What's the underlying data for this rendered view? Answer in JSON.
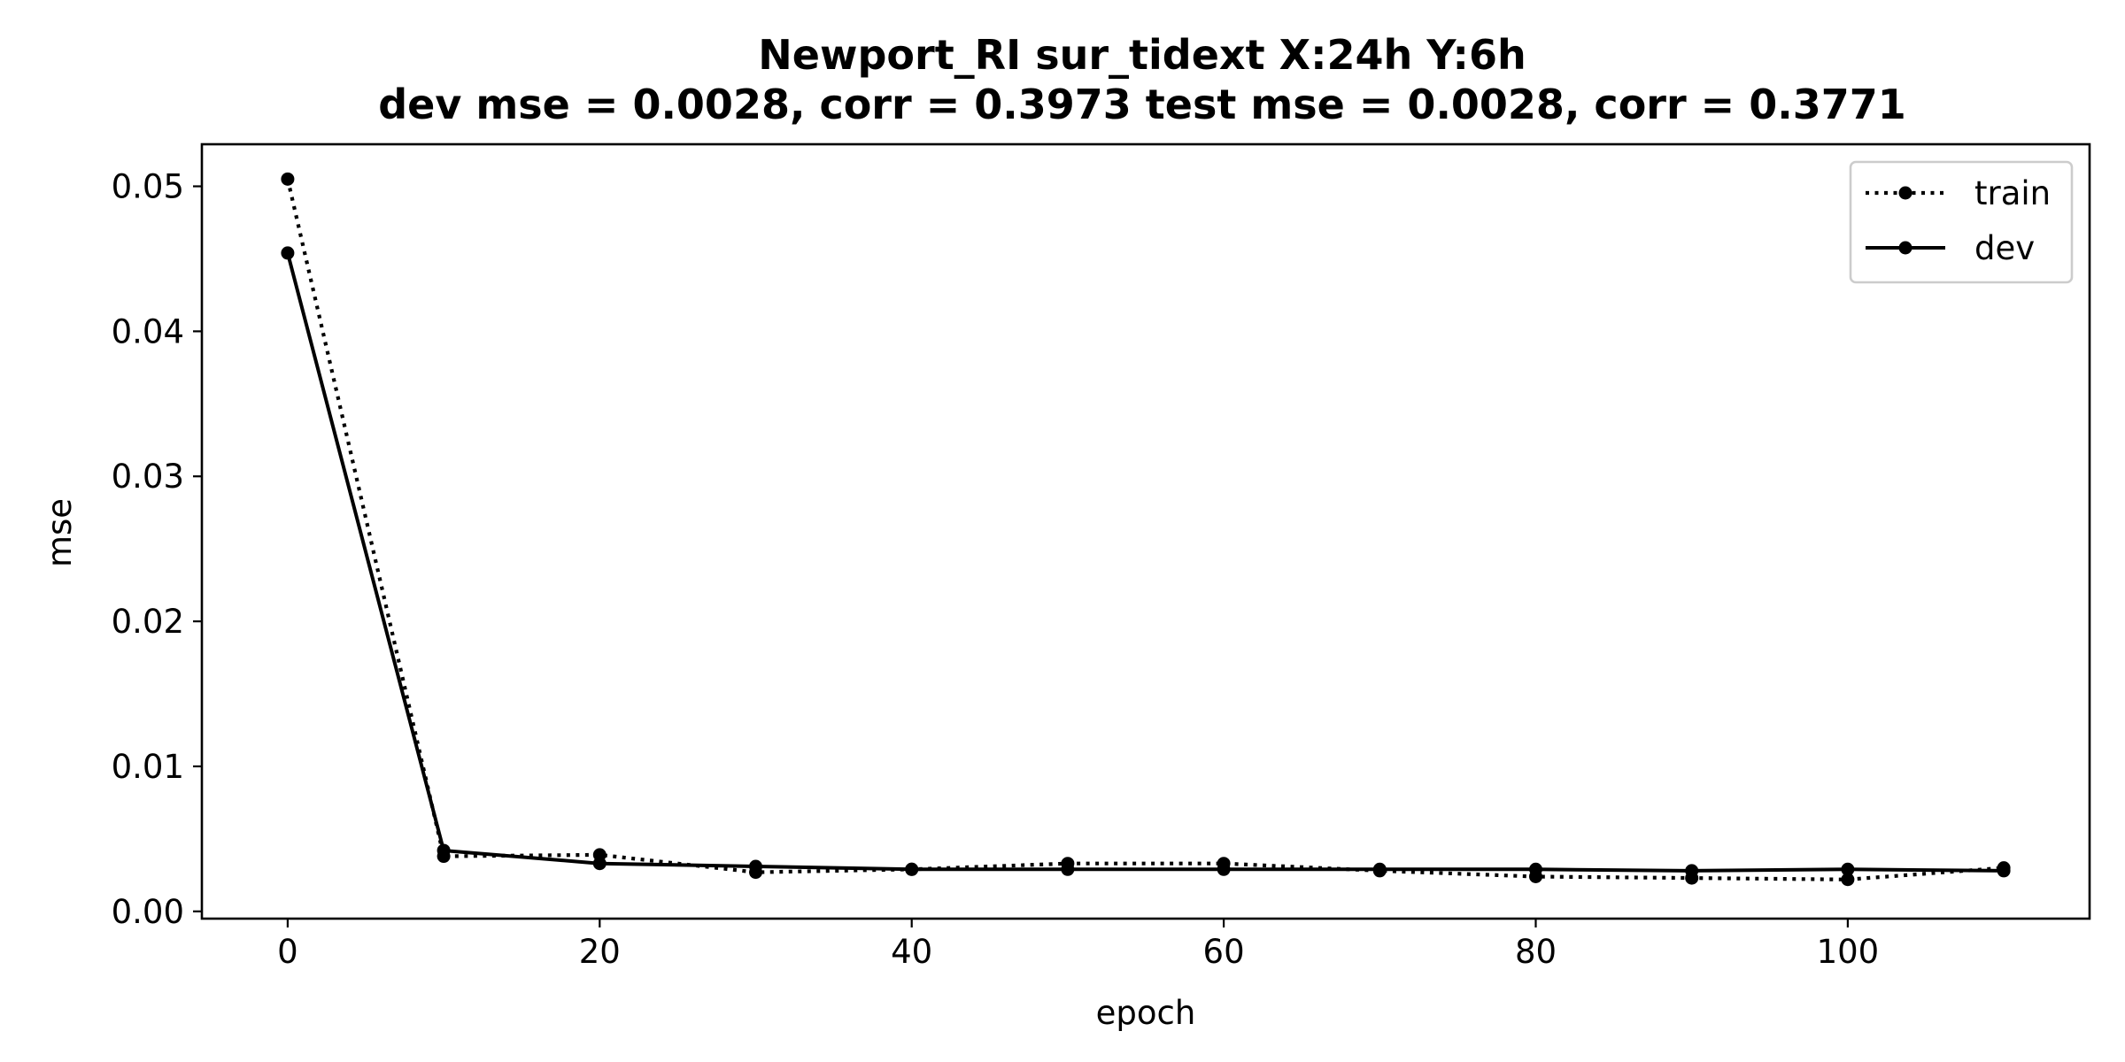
{
  "chart_data": {
    "type": "line",
    "title": "Newport_RI   sur_tidext   X:24h   Y:6h",
    "subtitle": "dev mse = 0.0028, corr = 0.3973   test mse = 0.0028, corr = 0.3771",
    "xlabel": "epoch",
    "ylabel": "mse",
    "xlim": [
      -5.5,
      115.5
    ],
    "ylim": [
      -0.0005,
      0.0529
    ],
    "xticks": [
      0,
      20,
      40,
      60,
      80,
      100
    ],
    "xtick_labels": [
      "0",
      "20",
      "40",
      "60",
      "80",
      "100"
    ],
    "yticks": [
      0.0,
      0.01,
      0.02,
      0.03,
      0.04,
      0.05
    ],
    "ytick_labels": [
      "0.00",
      "0.01",
      "0.02",
      "0.03",
      "0.04",
      "0.05"
    ],
    "grid": false,
    "legend_position": "top-right",
    "x": [
      0,
      10,
      20,
      30,
      40,
      50,
      60,
      70,
      80,
      90,
      100,
      110
    ],
    "series": [
      {
        "name": "train",
        "style": "dotted",
        "color": "#000000",
        "values": [
          0.0505,
          0.0038,
          0.0039,
          0.0027,
          0.0029,
          0.0033,
          0.0033,
          0.0028,
          0.0024,
          0.0023,
          0.0022,
          0.003
        ]
      },
      {
        "name": "dev",
        "style": "solid",
        "color": "#000000",
        "values": [
          0.0454,
          0.0042,
          0.0033,
          0.0031,
          0.0029,
          0.0029,
          0.0029,
          0.0029,
          0.0029,
          0.0028,
          0.0029,
          0.0028
        ]
      }
    ]
  }
}
